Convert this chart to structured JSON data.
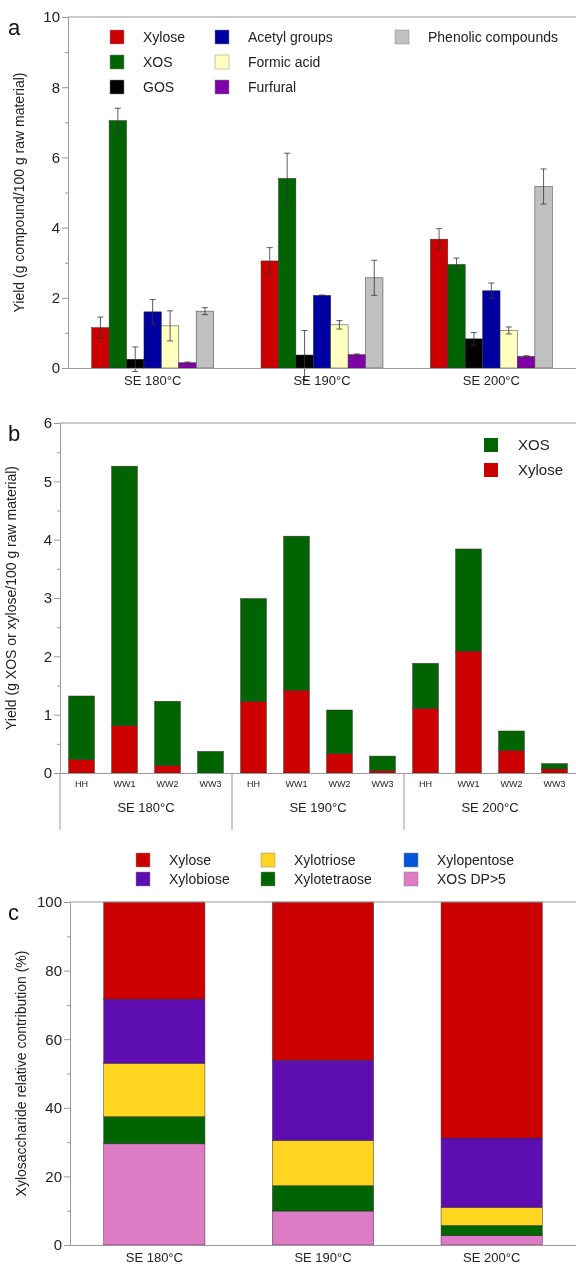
{
  "chart_data": [
    {
      "type": "bar",
      "categories": [
        "SE 180°C",
        "SE 190°C",
        "SE 200°C"
      ],
      "ylabel": "Yield (g compound/100 g raw material)",
      "ylim": [
        0,
        10
      ],
      "yticks": [
        0,
        {
          "value": 1,
          "label": null
        },
        2,
        {
          "value": 3,
          "label": null
        },
        4,
        {
          "value": 5,
          "label": null
        },
        6,
        {
          "value": 7,
          "label": null
        },
        8,
        {
          "value": 9,
          "label": null
        },
        10
      ],
      "grid": false,
      "legend": "top",
      "annotations": [
        "a"
      ],
      "series": [
        {
          "name": "Xylose",
          "color": "#cc0000",
          "values": [
            1.15,
            3.05,
            3.67
          ],
          "errors": [
            0.3,
            0.38,
            0.3
          ]
        },
        {
          "name": "XOS",
          "color": "#006400",
          "values": [
            7.05,
            5.4,
            2.95
          ],
          "errors": [
            0.35,
            0.72,
            0.18
          ]
        },
        {
          "name": "GOS",
          "color": "#000000",
          "values": [
            0.25,
            0.37,
            0.83
          ],
          "errors": [
            0.35,
            0.7,
            0.18
          ]
        },
        {
          "name": "Acetyl groups",
          "color": "#0000a0",
          "values": [
            1.6,
            2.07,
            2.2
          ],
          "errors": [
            0.35,
            0.01,
            0.22
          ]
        },
        {
          "name": "Formic acid",
          "color": "#ffffc0",
          "values": [
            1.2,
            1.23,
            1.07
          ],
          "errors": [
            0.43,
            0.12,
            0.1
          ]
        },
        {
          "name": "Furfural",
          "color": "#8000a8",
          "values": [
            0.15,
            0.38,
            0.33
          ],
          "errors": [
            0.02,
            0.02,
            0.02
          ]
        },
        {
          "name": "Phenolic compounds",
          "color": "#c0c0c0",
          "values": [
            1.62,
            2.57,
            5.17
          ],
          "errors": [
            0.1,
            0.5,
            0.5
          ]
        }
      ]
    },
    {
      "type": "bar",
      "stacked": true,
      "categories": [
        "HH",
        "WW1",
        "WW2",
        "WW3",
        "HH",
        "WW1",
        "WW2",
        "WW3",
        "HH",
        "WW1",
        "WW2",
        "WW3"
      ],
      "ylabel": "Yield (g XOS or xylose/100 g raw material)",
      "ylim": [
        0,
        6
      ],
      "yticks": [
        0,
        {
          "value": 0.5,
          "label": null
        },
        1,
        {
          "value": 1.5,
          "label": null
        },
        2,
        {
          "value": 2.5,
          "label": null
        },
        3,
        {
          "value": 3.5,
          "label": null
        },
        4,
        {
          "value": 4.5,
          "label": null
        },
        5,
        {
          "value": 5.5,
          "label": null
        },
        6
      ],
      "grid": false,
      "legend": "top right",
      "annotations": [
        "b",
        "SE 180°C",
        "SE 190°C",
        "SE 200°C"
      ],
      "series": [
        {
          "name": "Xylose",
          "color": "#cc0000",
          "values": [
            0.23,
            0.81,
            0.13,
            0,
            1.23,
            1.42,
            0.33,
            0.04,
            1.11,
            2.09,
            0.39,
            0.07
          ]
        },
        {
          "name": "XOS",
          "color": "#006400",
          "values": [
            1.09,
            4.45,
            1.1,
            0.37,
            1.76,
            2.64,
            0.75,
            0.25,
            0.77,
            1.75,
            0.33,
            0.09
          ]
        }
      ]
    },
    {
      "type": "bar",
      "stacked": true,
      "categories": [
        "SE 180°C",
        "SE 190°C",
        "SE 200°C"
      ],
      "ylabel": "Xylosaccharide relative contribution (%)",
      "ylim": [
        0,
        100
      ],
      "yticks": [
        0,
        {
          "value": 10,
          "label": null
        },
        20,
        {
          "value": 30,
          "label": null
        },
        40,
        {
          "value": 50,
          "label": null
        },
        60,
        {
          "value": 70,
          "label": null
        },
        80,
        {
          "value": 90,
          "label": null
        },
        100
      ],
      "grid": false,
      "legend": "top",
      "annotations": [
        "c"
      ],
      "series": [
        {
          "name": "XOS DP>5",
          "color": "#dd7bc4",
          "values": [
            29.5,
            9.9,
            2.7
          ]
        },
        {
          "name": "Xylopentose",
          "color": "#0055dd",
          "values": [
            0,
            0,
            0
          ]
        },
        {
          "name": "Xylotetraose",
          "color": "#006400",
          "values": [
            7.9,
            7.4,
            3.0
          ]
        },
        {
          "name": "Xylotriose",
          "color": "#ffd51f",
          "values": [
            15.6,
            13.2,
            5.3
          ]
        },
        {
          "name": "Xylobiose",
          "color": "#5e0db0",
          "values": [
            18.7,
            23.4,
            20.2
          ]
        },
        {
          "name": "Xylose",
          "color": "#cc0000",
          "values": [
            28.3,
            46.1,
            68.8
          ]
        }
      ]
    }
  ]
}
